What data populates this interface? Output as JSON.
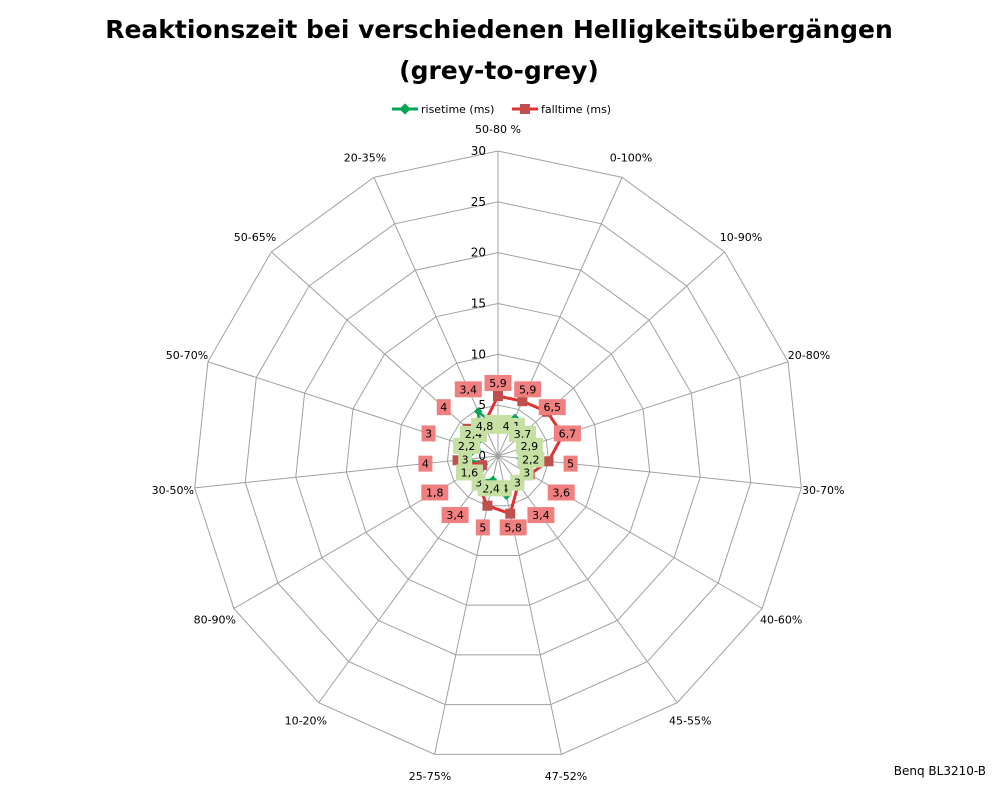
{
  "chart_data": {
    "type": "radar",
    "title": "Reaktionszeit bei verschiedenen Helligkeitsübergängen",
    "subtitle": "(grey-to-grey)",
    "categories": [
      "50-80 %",
      "0-100%",
      "10-90%",
      "20-80%",
      "30-70%",
      "40-60%",
      "45-55%",
      "47-52%",
      "25-75%",
      "10-20%",
      "80-90%",
      "30-50%",
      "50-70%",
      "50-65%",
      "20-35%"
    ],
    "rmax": 30,
    "ticks": [
      0,
      5,
      10,
      15,
      20,
      25,
      30
    ],
    "grid": true,
    "legend_position": "top",
    "series": [
      {
        "name": "risetime (ms)",
        "color": "#00a651",
        "marker": "diamond",
        "values": [
          2.7,
          4.1,
          3.7,
          2.9,
          2.2,
          3,
          3,
          4,
          2.4,
          3,
          1.6,
          3,
          2.2,
          2.4,
          4.8
        ],
        "labels": [
          "2,7",
          "4,1",
          "3,7",
          "2,9",
          "2,2",
          "3",
          "3",
          "4",
          "2,4",
          "3",
          "1,6",
          "3",
          "2,2",
          "2,4",
          "4,8"
        ]
      },
      {
        "name": "falltime (ms)",
        "color": "#e03030",
        "marker": "square",
        "values": [
          5.9,
          5.9,
          6.5,
          6.7,
          5,
          3.6,
          3.4,
          5.8,
          5,
          3.4,
          1.8,
          4,
          3,
          4,
          3.4
        ],
        "labels": [
          "5,9",
          "5,9",
          "6,5",
          "6,7",
          "5",
          "3,6",
          "3,4",
          "5,8",
          "5",
          "3,4",
          "1,8",
          "4",
          "3",
          "4",
          "3,4"
        ]
      }
    ]
  },
  "footer": "Benq BL3210-B"
}
